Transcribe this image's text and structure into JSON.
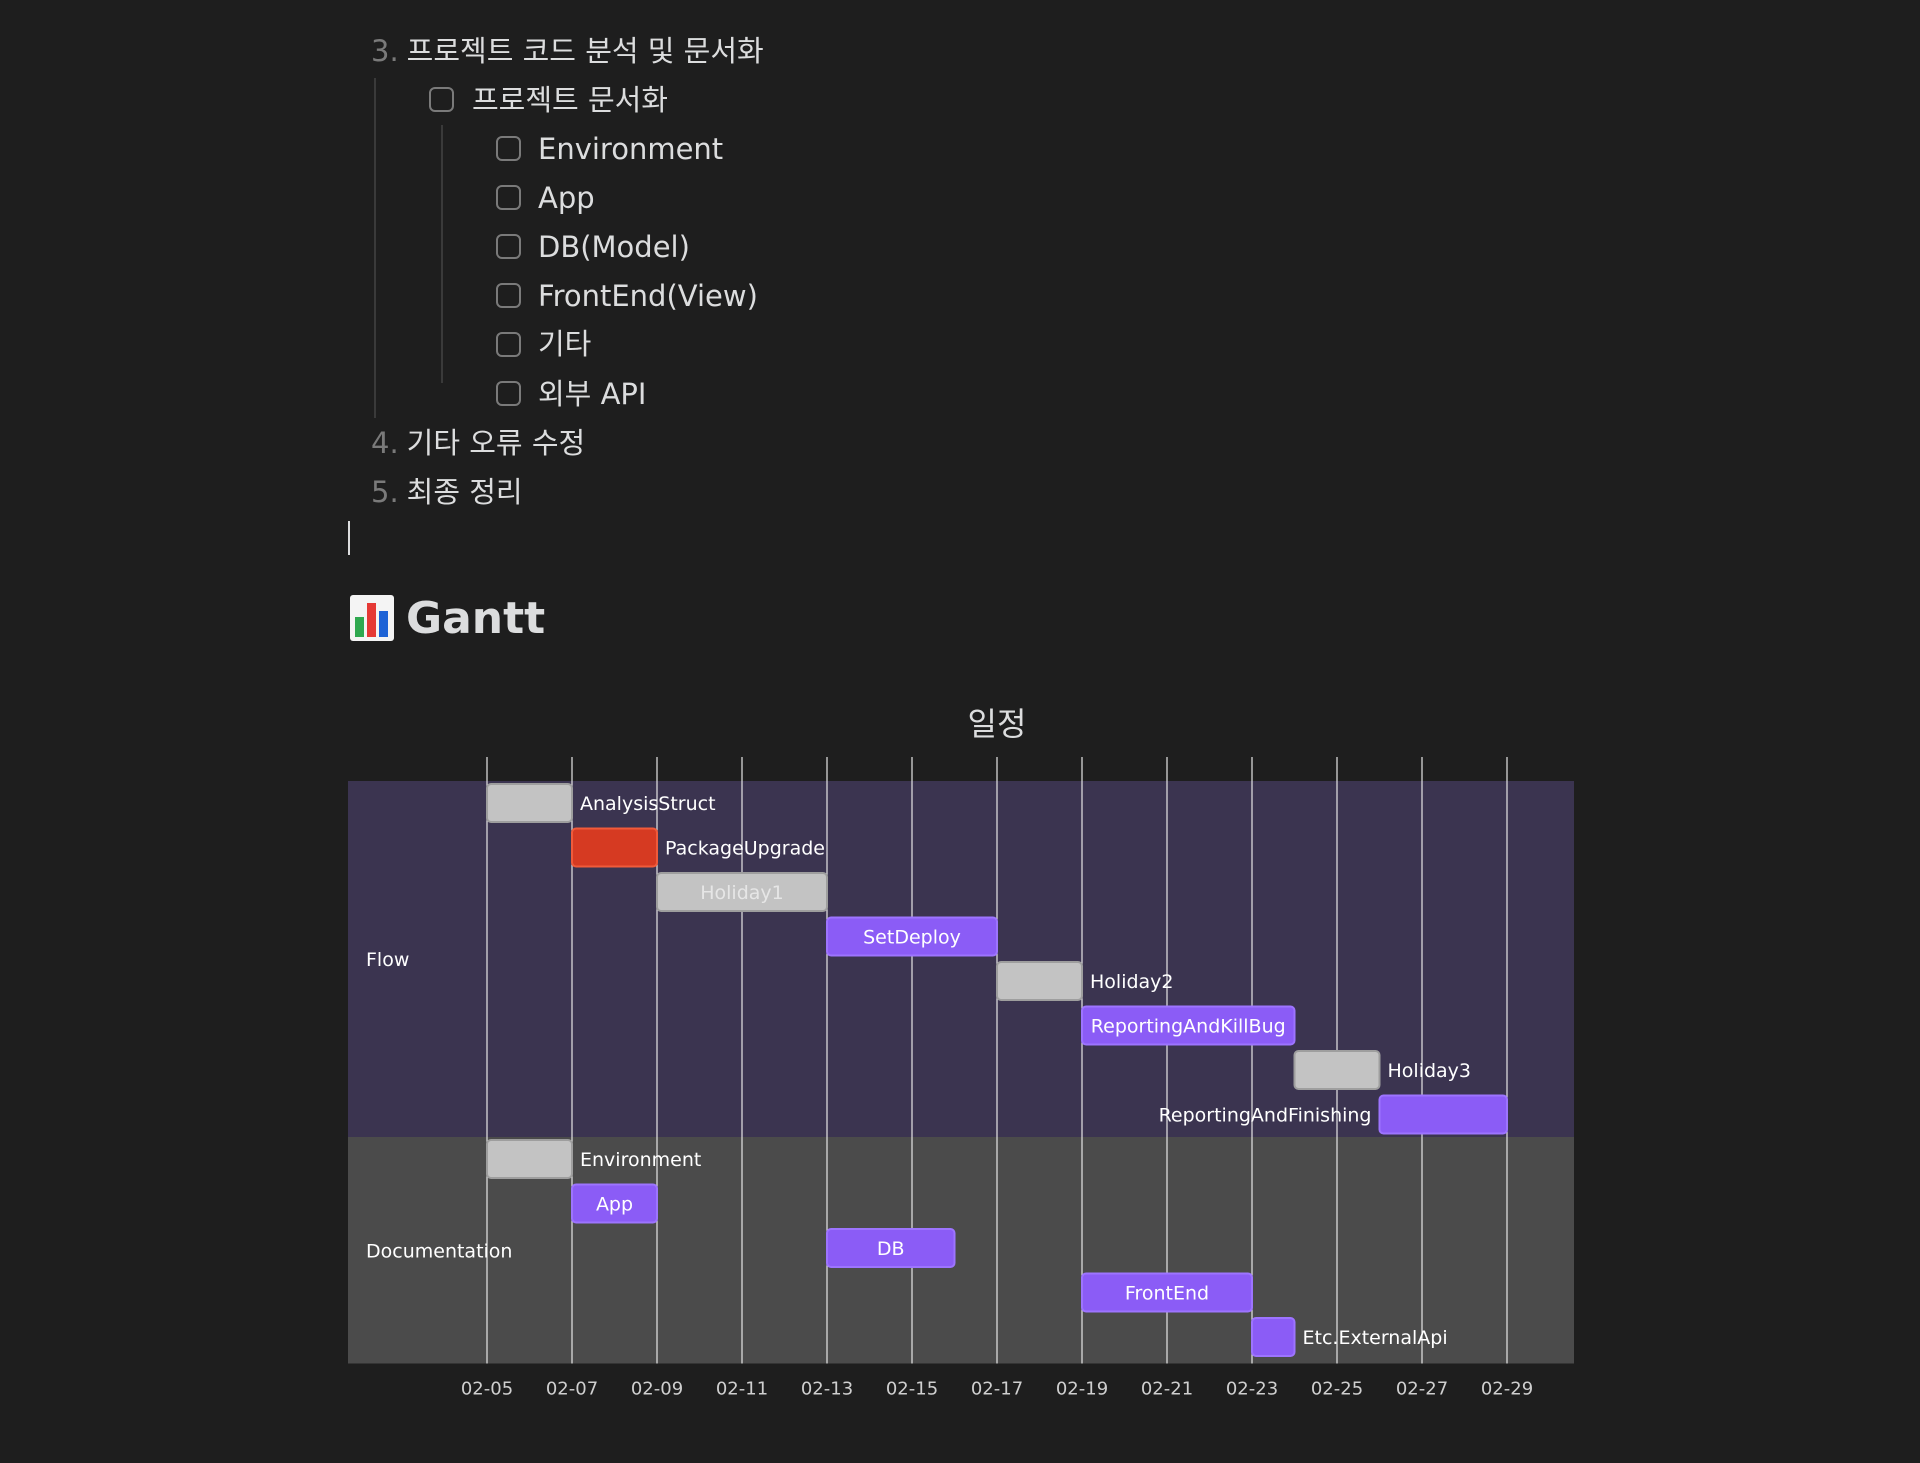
{
  "outline": {
    "items": [
      {
        "number": "3.",
        "text": "프로젝트 코드 분석 및 문서화"
      },
      {
        "text": "프로젝트 문서화",
        "checked": false
      },
      {
        "text": "Environment",
        "checked": false
      },
      {
        "text": "App",
        "checked": false
      },
      {
        "text": "DB(Model)",
        "checked": false
      },
      {
        "text": "FrontEnd(View)",
        "checked": false
      },
      {
        "text": "기타",
        "checked": false
      },
      {
        "text": "외부 API",
        "checked": false
      },
      {
        "number": "4.",
        "text": "기타 오류 수정"
      },
      {
        "number": "5.",
        "text": "최종 정리"
      }
    ]
  },
  "heading": {
    "text": "Gantt",
    "icon": "bar-chart-emoji-icon"
  },
  "chart_data": {
    "type": "gantt",
    "title": "일정",
    "x_ticks": [
      "02-05",
      "02-07",
      "02-09",
      "02-11",
      "02-13",
      "02-15",
      "02-17",
      "02-19",
      "02-21",
      "02-23",
      "02-25",
      "02-27",
      "02-29"
    ],
    "sections": [
      {
        "name": "Flow",
        "color": "#3b3450",
        "tasks": [
          {
            "name": "AnalysisStruct",
            "start": "02-05",
            "end": "02-07",
            "status": "done"
          },
          {
            "name": "PackageUpgrade",
            "start": "02-07",
            "end": "02-09",
            "status": "crit"
          },
          {
            "name": "Holiday1",
            "start": "02-09",
            "end": "02-13",
            "status": "done"
          },
          {
            "name": "SetDeploy",
            "start": "02-13",
            "end": "02-17",
            "status": "active"
          },
          {
            "name": "Holiday2",
            "start": "02-17",
            "end": "02-19",
            "status": "done"
          },
          {
            "name": "ReportingAndKillBug",
            "start": "02-19",
            "end": "02-24",
            "status": "active"
          },
          {
            "name": "Holiday3",
            "start": "02-24",
            "end": "02-26",
            "status": "done"
          },
          {
            "name": "ReportingAndFinishing",
            "start": "02-26",
            "end": "02-29",
            "status": "active"
          }
        ]
      },
      {
        "name": "Documentation",
        "color": "#4b4b4b",
        "tasks": [
          {
            "name": "Environment",
            "start": "02-05",
            "end": "02-07",
            "status": "done"
          },
          {
            "name": "App",
            "start": "02-07",
            "end": "02-09",
            "status": "active"
          },
          {
            "name": "DB",
            "start": "02-13",
            "end": "02-16",
            "status": "active"
          },
          {
            "name": "FrontEnd",
            "start": "02-19",
            "end": "02-23",
            "status": "active"
          },
          {
            "name": "Etc.ExternalApi",
            "start": "02-23",
            "end": "02-24",
            "status": "active"
          }
        ]
      }
    ],
    "colors": {
      "done": "#c3c3c3",
      "crit": "#d63a22",
      "active": "#8b5cf6",
      "gridline": "#e6e6e6"
    }
  }
}
